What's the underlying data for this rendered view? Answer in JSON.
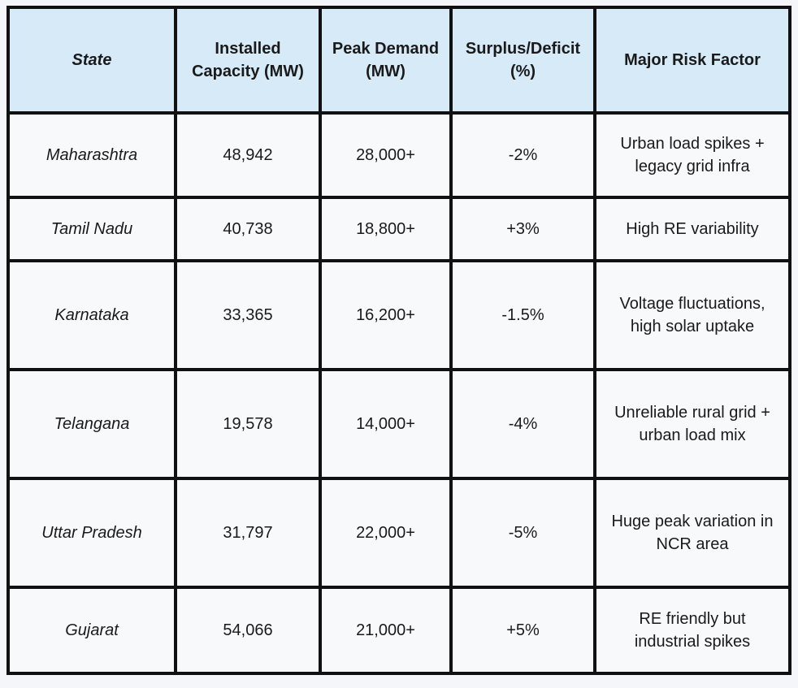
{
  "table": {
    "headers": [
      "State",
      "Installed Capacity (MW)",
      "Peak Demand (MW)",
      "Surplus/Deficit (%)",
      "Major Risk Factor"
    ],
    "rows": [
      {
        "state": "Maharashtra",
        "capacity": "48,942",
        "demand": "28,000+",
        "surplus": "-2%",
        "risk": "Urban load spikes + legacy grid infra"
      },
      {
        "state": "Tamil Nadu",
        "capacity": "40,738",
        "demand": "18,800+",
        "surplus": "+3%",
        "risk": "High RE variability"
      },
      {
        "state": "Karnataka",
        "capacity": "33,365",
        "demand": "16,200+",
        "surplus": "-1.5%",
        "risk": "Voltage fluctuations, high solar uptake"
      },
      {
        "state": "Telangana",
        "capacity": "19,578",
        "demand": "14,000+",
        "surplus": "-4%",
        "risk": "Unreliable rural grid + urban load mix"
      },
      {
        "state": "Uttar Pradesh",
        "capacity": "31,797",
        "demand": "22,000+",
        "surplus": "-5%",
        "risk": "Huge peak variation in NCR area"
      },
      {
        "state": "Gujarat",
        "capacity": "54,066",
        "demand": "21,000+",
        "surplus": "+5%",
        "risk": "RE friendly but industrial spikes"
      }
    ]
  },
  "colors": {
    "header_bg": "#d6eaf8",
    "cell_bg": "#f8f9fb",
    "border": "#111111"
  }
}
